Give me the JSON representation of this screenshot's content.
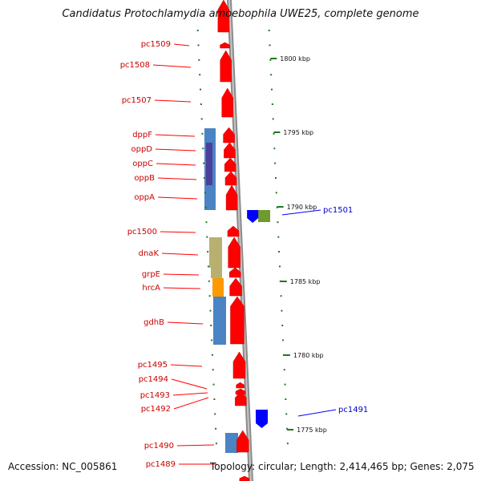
{
  "title": "Candidatus Protochlamydia amoebophila UWE25, complete genome",
  "accession": "Accession: NC_005861",
  "topology": "Topology: circular; Length: 2,414,465 bp; Genes: 2,075",
  "colors": {
    "forward_gene": "#ff0000",
    "reverse_gene": "#0000ff",
    "label_forward": "#cc0000",
    "label_reverse": "#0000cc",
    "backbone": "#8c8c8c",
    "tick": "#1f7a1f",
    "cog_blue": "#4a84c4",
    "cog_purple": "#4b3f9c",
    "cog_olive": "#b8b070",
    "cog_orange": "#ff9900",
    "cog_green": "#6e9a2e"
  },
  "kbp_labels": [
    {
      "kbp": 1800,
      "text": "1800 kbp"
    },
    {
      "kbp": 1795,
      "text": "1795 kbp"
    },
    {
      "kbp": 1790,
      "text": "1790 kbp"
    },
    {
      "kbp": 1785,
      "text": "1785 kbp"
    },
    {
      "kbp": 1780,
      "text": "1780 kbp"
    },
    {
      "kbp": 1775,
      "text": "1775 kbp"
    }
  ],
  "gene_labels": [
    {
      "name": "pc1509",
      "strand": "forward"
    },
    {
      "name": "pc1508",
      "strand": "forward"
    },
    {
      "name": "pc1507",
      "strand": "forward"
    },
    {
      "name": "dppF",
      "strand": "forward"
    },
    {
      "name": "oppD",
      "strand": "forward"
    },
    {
      "name": "oppC",
      "strand": "forward"
    },
    {
      "name": "oppB",
      "strand": "forward"
    },
    {
      "name": "oppA",
      "strand": "forward"
    },
    {
      "name": "pc1501",
      "strand": "reverse"
    },
    {
      "name": "pc1500",
      "strand": "forward"
    },
    {
      "name": "dnaK",
      "strand": "forward"
    },
    {
      "name": "grpE",
      "strand": "forward"
    },
    {
      "name": "hrcA",
      "strand": "forward"
    },
    {
      "name": "gdhB",
      "strand": "forward"
    },
    {
      "name": "pc1495",
      "strand": "forward"
    },
    {
      "name": "pc1494",
      "strand": "forward"
    },
    {
      "name": "pc1493",
      "strand": "forward"
    },
    {
      "name": "pc1492",
      "strand": "forward"
    },
    {
      "name": "pc1491",
      "strand": "reverse"
    },
    {
      "name": "pc1490",
      "strand": "forward"
    },
    {
      "name": "pc1489",
      "strand": "forward"
    }
  ]
}
